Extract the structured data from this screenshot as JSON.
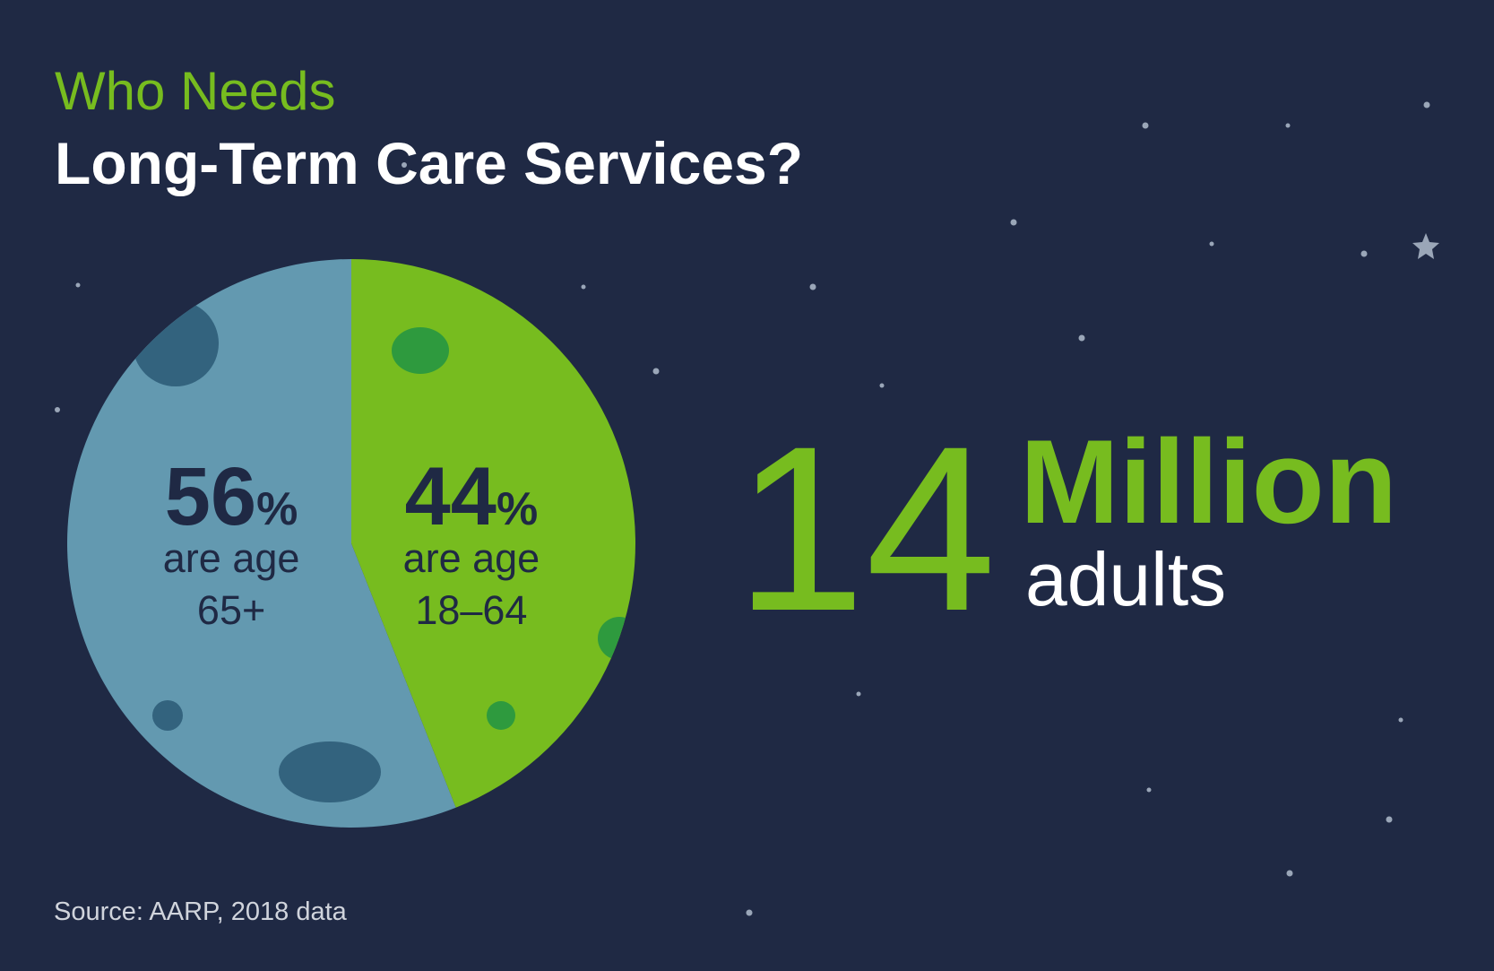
{
  "chart_data": {
    "type": "pie",
    "title": "Who Needs",
    "subtitle": "Long-Term Care Services?",
    "categories": [
      "are age 65+",
      "are age 18–64"
    ],
    "values": [
      56,
      44
    ],
    "value_labels": [
      "56%",
      "44%"
    ],
    "colors": [
      "#6399b0",
      "#77bc1f"
    ],
    "stat": {
      "number": 14,
      "unit": "Million",
      "label": "adults"
    },
    "source": "Source: AARP, 2018 data"
  }
}
